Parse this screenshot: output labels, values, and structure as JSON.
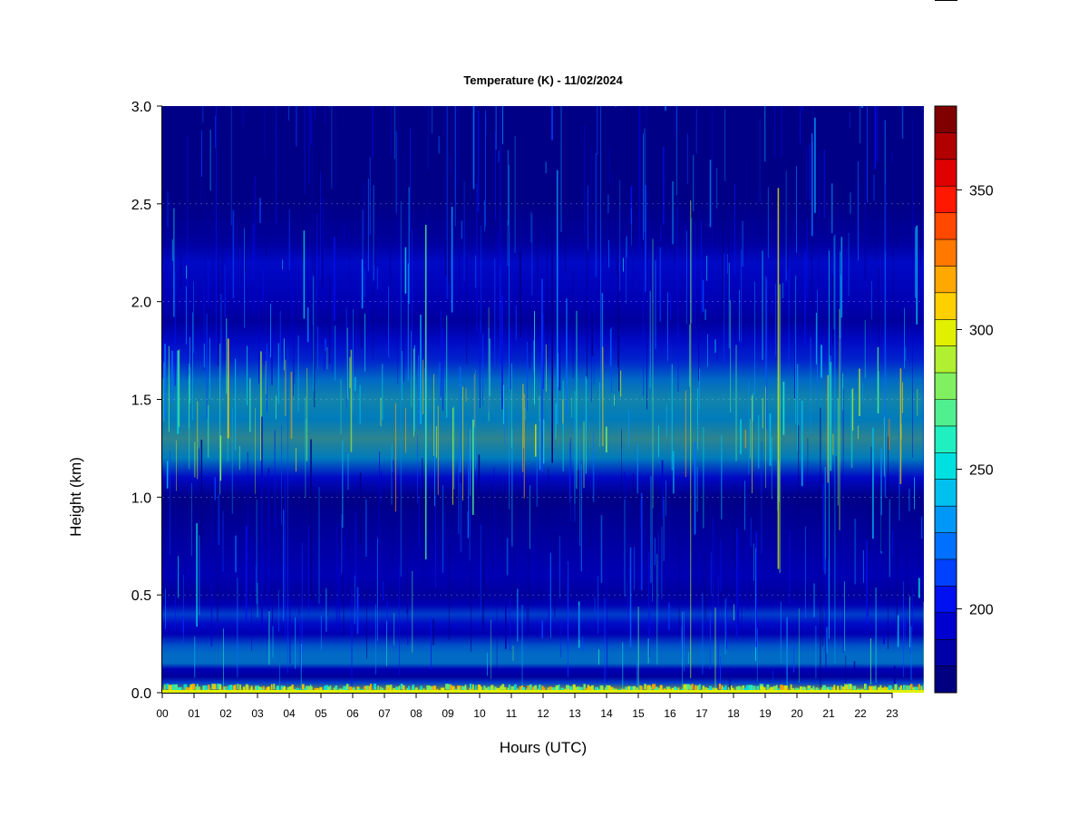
{
  "chart_data": {
    "type": "heatmap",
    "title": "Temperature (K) - 11/02/2024",
    "xlabel": "Hours (UTC)",
    "ylabel": "Height (km)",
    "xlim": [
      0,
      24
    ],
    "ylim": [
      0,
      3
    ],
    "x_ticks": [
      "00",
      "01",
      "02",
      "03",
      "04",
      "05",
      "06",
      "07",
      "08",
      "09",
      "10",
      "11",
      "12",
      "13",
      "14",
      "15",
      "16",
      "17",
      "18",
      "19",
      "20",
      "21",
      "22",
      "23"
    ],
    "y_ticks": [
      "0.0",
      "0.5",
      "1.0",
      "1.5",
      "2.0",
      "2.5",
      "3.0"
    ],
    "colorbar": {
      "vmin": 170,
      "vmax": 380,
      "ticks": [
        200,
        250,
        300,
        350
      ],
      "tick_labels": [
        "200",
        "250",
        "300",
        "350"
      ],
      "colors": [
        "#000080",
        "#0000a8",
        "#0000d0",
        "#0010f0",
        "#0040ff",
        "#0070ff",
        "#0098f8",
        "#00c0f0",
        "#00e0e0",
        "#20f0c0",
        "#50f090",
        "#80f060",
        "#b0f030",
        "#e0f000",
        "#ffd000",
        "#ffa800",
        "#ff7800",
        "#ff4800",
        "#ff1800",
        "#e00000",
        "#b00000",
        "#800000"
      ]
    },
    "profile": [
      {
        "h": 0.0,
        "t": 300
      },
      {
        "h": 0.02,
        "t": 290
      },
      {
        "h": 0.05,
        "t": 220
      },
      {
        "h": 0.08,
        "t": 185
      },
      {
        "h": 0.12,
        "t": 195
      },
      {
        "h": 0.15,
        "t": 240
      },
      {
        "h": 0.2,
        "t": 245
      },
      {
        "h": 0.24,
        "t": 230
      },
      {
        "h": 0.3,
        "t": 190
      },
      {
        "h": 0.35,
        "t": 200
      },
      {
        "h": 0.4,
        "t": 220
      },
      {
        "h": 0.45,
        "t": 195
      },
      {
        "h": 0.5,
        "t": 185
      },
      {
        "h": 0.6,
        "t": 190
      },
      {
        "h": 0.8,
        "t": 180
      },
      {
        "h": 1.0,
        "t": 178
      },
      {
        "h": 1.1,
        "t": 200
      },
      {
        "h": 1.2,
        "t": 255
      },
      {
        "h": 1.3,
        "t": 270
      },
      {
        "h": 1.4,
        "t": 250
      },
      {
        "h": 1.5,
        "t": 262
      },
      {
        "h": 1.6,
        "t": 245
      },
      {
        "h": 1.7,
        "t": 215
      },
      {
        "h": 1.8,
        "t": 200
      },
      {
        "h": 1.9,
        "t": 185
      },
      {
        "h": 2.0,
        "t": 195
      },
      {
        "h": 2.2,
        "t": 200
      },
      {
        "h": 2.3,
        "t": 180
      },
      {
        "h": 2.5,
        "t": 176
      },
      {
        "h": 3.0,
        "t": 174
      }
    ]
  }
}
